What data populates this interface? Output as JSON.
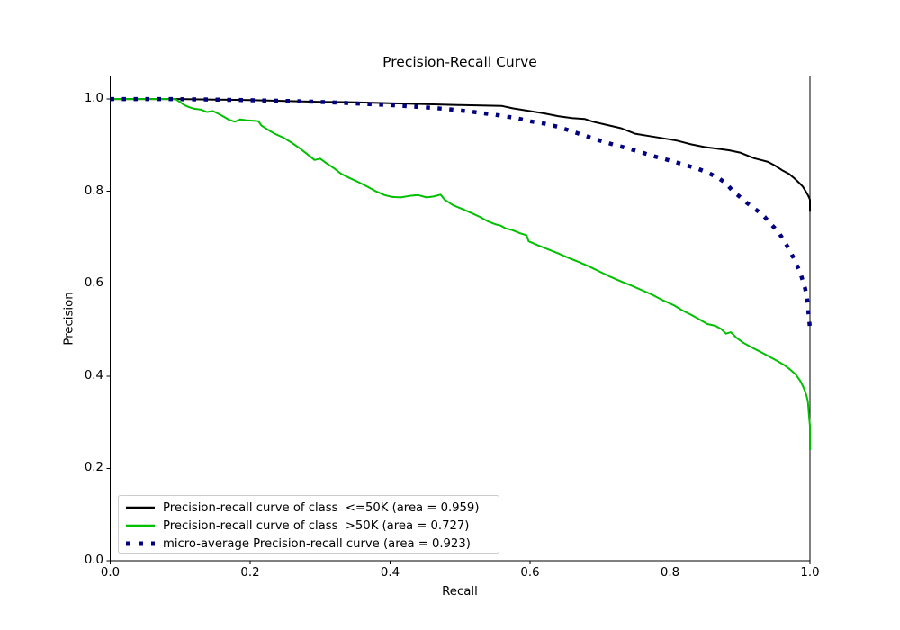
{
  "title": "Precision-Recall Curve",
  "chart_data": {
    "type": "line",
    "title": "Precision-Recall Curve",
    "xlabel": "Recall",
    "ylabel": "Precision",
    "xlim": [
      0.0,
      1.0
    ],
    "ylim": [
      0.0,
      1.05
    ],
    "grid": false,
    "legend_position": "lower left",
    "x_ticks": [
      0.0,
      0.2,
      0.4,
      0.6,
      0.8,
      1.0
    ],
    "x_tick_labels": [
      "0.0",
      "0.2",
      "0.4",
      "0.6",
      "0.8",
      "1.0"
    ],
    "y_ticks": [
      0.0,
      0.2,
      0.4,
      0.6,
      0.8,
      1.0
    ],
    "y_tick_labels": [
      "0.0",
      "0.2",
      "0.4",
      "0.6",
      "0.8",
      "1.0"
    ],
    "series": [
      {
        "name": "class <=50K",
        "legend_label": "Precision-recall curve of class  <=50K (area = 0.959)",
        "area": 0.959,
        "color": "#000000",
        "style": "solid",
        "linewidth": 2,
        "points": [
          [
            0.0,
            1.0
          ],
          [
            0.05,
            1.0
          ],
          [
            0.1,
            1.0
          ],
          [
            0.15,
            0.999
          ],
          [
            0.2,
            0.998
          ],
          [
            0.25,
            0.996
          ],
          [
            0.3,
            0.994
          ],
          [
            0.35,
            0.993
          ],
          [
            0.4,
            0.991
          ],
          [
            0.45,
            0.989
          ],
          [
            0.5,
            0.987
          ],
          [
            0.53,
            0.986
          ],
          [
            0.56,
            0.985
          ],
          [
            0.575,
            0.98
          ],
          [
            0.6,
            0.974
          ],
          [
            0.62,
            0.969
          ],
          [
            0.64,
            0.963
          ],
          [
            0.66,
            0.959
          ],
          [
            0.678,
            0.957
          ],
          [
            0.69,
            0.951
          ],
          [
            0.71,
            0.944
          ],
          [
            0.73,
            0.937
          ],
          [
            0.75,
            0.925
          ],
          [
            0.77,
            0.92
          ],
          [
            0.79,
            0.915
          ],
          [
            0.81,
            0.91
          ],
          [
            0.83,
            0.902
          ],
          [
            0.85,
            0.896
          ],
          [
            0.87,
            0.892
          ],
          [
            0.885,
            0.889
          ],
          [
            0.9,
            0.884
          ],
          [
            0.91,
            0.878
          ],
          [
            0.92,
            0.872
          ],
          [
            0.93,
            0.868
          ],
          [
            0.94,
            0.864
          ],
          [
            0.95,
            0.856
          ],
          [
            0.96,
            0.846
          ],
          [
            0.97,
            0.838
          ],
          [
            0.978,
            0.828
          ],
          [
            0.985,
            0.818
          ],
          [
            0.99,
            0.81
          ],
          [
            0.994,
            0.8
          ],
          [
            0.997,
            0.792
          ],
          [
            0.999,
            0.786
          ],
          [
            1.0,
            0.782
          ],
          [
            1.0,
            0.756
          ]
        ]
      },
      {
        "name": "class >50K",
        "legend_label": "Precision-recall curve of class  >50K (area = 0.727)",
        "area": 0.727,
        "color": "#00c000",
        "style": "solid",
        "linewidth": 2,
        "points": [
          [
            0.0,
            1.0
          ],
          [
            0.05,
            1.0
          ],
          [
            0.093,
            1.0
          ],
          [
            0.1,
            0.993
          ],
          [
            0.106,
            0.987
          ],
          [
            0.112,
            0.983
          ],
          [
            0.12,
            0.979
          ],
          [
            0.13,
            0.977
          ],
          [
            0.138,
            0.972
          ],
          [
            0.147,
            0.974
          ],
          [
            0.155,
            0.968
          ],
          [
            0.162,
            0.962
          ],
          [
            0.17,
            0.955
          ],
          [
            0.178,
            0.951
          ],
          [
            0.186,
            0.956
          ],
          [
            0.195,
            0.954
          ],
          [
            0.205,
            0.953
          ],
          [
            0.212,
            0.952
          ],
          [
            0.216,
            0.943
          ],
          [
            0.225,
            0.934
          ],
          [
            0.235,
            0.925
          ],
          [
            0.248,
            0.916
          ],
          [
            0.26,
            0.905
          ],
          [
            0.272,
            0.892
          ],
          [
            0.283,
            0.879
          ],
          [
            0.292,
            0.868
          ],
          [
            0.3,
            0.871
          ],
          [
            0.31,
            0.86
          ],
          [
            0.32,
            0.85
          ],
          [
            0.33,
            0.838
          ],
          [
            0.342,
            0.829
          ],
          [
            0.355,
            0.82
          ],
          [
            0.368,
            0.81
          ],
          [
            0.38,
            0.8
          ],
          [
            0.392,
            0.792
          ],
          [
            0.403,
            0.788
          ],
          [
            0.415,
            0.787
          ],
          [
            0.427,
            0.79
          ],
          [
            0.44,
            0.792
          ],
          [
            0.452,
            0.787
          ],
          [
            0.462,
            0.789
          ],
          [
            0.472,
            0.793
          ],
          [
            0.478,
            0.782
          ],
          [
            0.49,
            0.77
          ],
          [
            0.503,
            0.762
          ],
          [
            0.515,
            0.754
          ],
          [
            0.528,
            0.745
          ],
          [
            0.54,
            0.735
          ],
          [
            0.55,
            0.729
          ],
          [
            0.558,
            0.726
          ],
          [
            0.565,
            0.72
          ],
          [
            0.575,
            0.716
          ],
          [
            0.585,
            0.71
          ],
          [
            0.595,
            0.705
          ],
          [
            0.598,
            0.692
          ],
          [
            0.61,
            0.684
          ],
          [
            0.625,
            0.675
          ],
          [
            0.64,
            0.666
          ],
          [
            0.655,
            0.656
          ],
          [
            0.67,
            0.647
          ],
          [
            0.685,
            0.637
          ],
          [
            0.7,
            0.626
          ],
          [
            0.715,
            0.615
          ],
          [
            0.73,
            0.605
          ],
          [
            0.745,
            0.596
          ],
          [
            0.76,
            0.586
          ],
          [
            0.775,
            0.576
          ],
          [
            0.79,
            0.564
          ],
          [
            0.805,
            0.554
          ],
          [
            0.818,
            0.542
          ],
          [
            0.83,
            0.533
          ],
          [
            0.843,
            0.522
          ],
          [
            0.853,
            0.513
          ],
          [
            0.865,
            0.509
          ],
          [
            0.873,
            0.502
          ],
          [
            0.88,
            0.492
          ],
          [
            0.887,
            0.495
          ],
          [
            0.895,
            0.483
          ],
          [
            0.905,
            0.472
          ],
          [
            0.917,
            0.462
          ],
          [
            0.93,
            0.452
          ],
          [
            0.942,
            0.442
          ],
          [
            0.953,
            0.433
          ],
          [
            0.963,
            0.424
          ],
          [
            0.972,
            0.414
          ],
          [
            0.98,
            0.403
          ],
          [
            0.986,
            0.39
          ],
          [
            0.99,
            0.378
          ],
          [
            0.993,
            0.367
          ],
          [
            0.995,
            0.358
          ],
          [
            0.997,
            0.345
          ],
          [
            0.998,
            0.328
          ],
          [
            0.999,
            0.308
          ],
          [
            1.0,
            0.292
          ],
          [
            1.0,
            0.24
          ]
        ]
      },
      {
        "name": "micro-average",
        "legend_label": "micro-average Precision-recall curve (area = 0.923)",
        "area": 0.923,
        "color": "#000080",
        "style": "dotted",
        "linewidth": 4,
        "points": [
          [
            0.0,
            1.0
          ],
          [
            0.08,
            1.0
          ],
          [
            0.15,
            0.999
          ],
          [
            0.22,
            0.997
          ],
          [
            0.28,
            0.995
          ],
          [
            0.33,
            0.992
          ],
          [
            0.37,
            0.989
          ],
          [
            0.4,
            0.987
          ],
          [
            0.43,
            0.984
          ],
          [
            0.46,
            0.981
          ],
          [
            0.49,
            0.977
          ],
          [
            0.52,
            0.972
          ],
          [
            0.55,
            0.966
          ],
          [
            0.58,
            0.959
          ],
          [
            0.6,
            0.952
          ],
          [
            0.62,
            0.947
          ],
          [
            0.64,
            0.94
          ],
          [
            0.66,
            0.93
          ],
          [
            0.68,
            0.92
          ],
          [
            0.7,
            0.91
          ],
          [
            0.72,
            0.901
          ],
          [
            0.74,
            0.893
          ],
          [
            0.76,
            0.884
          ],
          [
            0.78,
            0.875
          ],
          [
            0.8,
            0.867
          ],
          [
            0.82,
            0.858
          ],
          [
            0.84,
            0.849
          ],
          [
            0.855,
            0.84
          ],
          [
            0.87,
            0.828
          ],
          [
            0.88,
            0.818
          ],
          [
            0.89,
            0.8
          ],
          [
            0.9,
            0.788
          ],
          [
            0.91,
            0.775
          ],
          [
            0.925,
            0.758
          ],
          [
            0.935,
            0.745
          ],
          [
            0.945,
            0.728
          ],
          [
            0.955,
            0.712
          ],
          [
            0.962,
            0.695
          ],
          [
            0.97,
            0.675
          ],
          [
            0.977,
            0.655
          ],
          [
            0.982,
            0.638
          ],
          [
            0.987,
            0.62
          ],
          [
            0.99,
            0.605
          ],
          [
            0.993,
            0.59
          ],
          [
            0.995,
            0.575
          ],
          [
            0.997,
            0.555
          ],
          [
            0.998,
            0.535
          ],
          [
            0.999,
            0.52
          ],
          [
            1.0,
            0.503
          ]
        ]
      }
    ]
  }
}
